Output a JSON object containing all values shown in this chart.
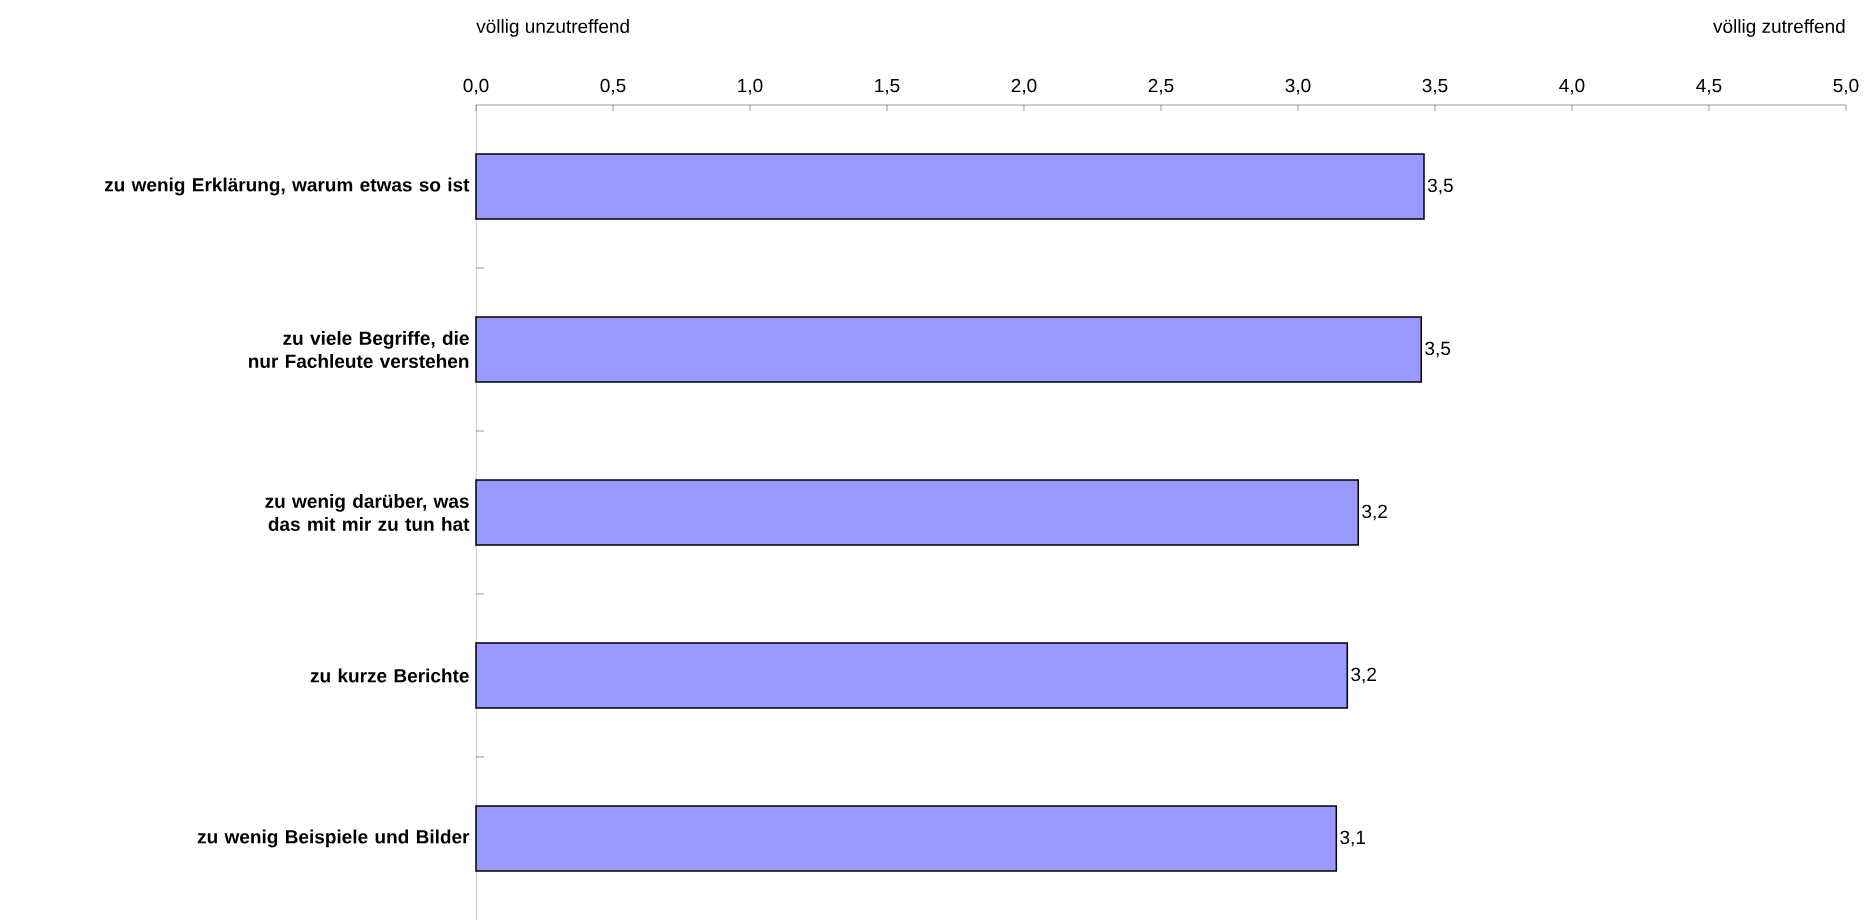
{
  "chart_data": {
    "type": "bar",
    "orientation": "horizontal",
    "categories": [
      "zu wenig Erklärung, warum etwas so ist",
      "zu viele Begriffe, die nur Fachleute verstehen",
      "zu wenig  darüber, was das  mit mir zu tun hat",
      "zu kurze Berichte",
      "zu wenig Beispiele und Bilder"
    ],
    "values": [
      3.46,
      3.45,
      3.22,
      3.18,
      3.14
    ],
    "value_labels": [
      "3,5",
      "3,5",
      "3,2",
      "3,2",
      "3,1"
    ],
    "color": "#9999ff",
    "xlim": [
      0,
      5
    ],
    "xticks": [
      {
        "value": 0,
        "label": "0,0"
      },
      {
        "value": 0.5,
        "label": "0,5"
      },
      {
        "value": 1,
        "label": "1,0"
      },
      {
        "value": 1.5,
        "label": "1,5"
      },
      {
        "value": 2,
        "label": "2,0"
      },
      {
        "value": 2.5,
        "label": "2,5"
      },
      {
        "value": 3,
        "label": "3,0"
      },
      {
        "value": 3.5,
        "label": "3,5"
      },
      {
        "value": 4,
        "label": "4,0"
      },
      {
        "value": 4.5,
        "label": "4,5"
      },
      {
        "value": 5,
        "label": "5,0"
      }
    ],
    "annotations": [
      "völlig unzutreffend",
      "völlig zutreffend"
    ]
  }
}
